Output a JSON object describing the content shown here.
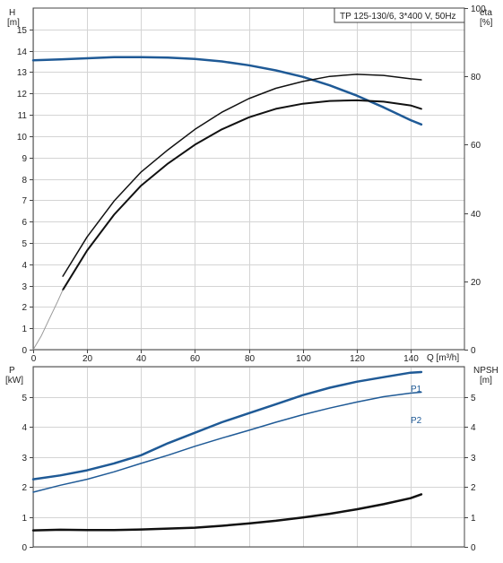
{
  "chart_data": [
    {
      "type": "line",
      "panel": "top",
      "title_box": "TP 125-130/6, 3*400 V, 50Hz",
      "left_axis": {
        "label": "H",
        "unit": "[m]",
        "ticks": [
          "0",
          "1",
          "2",
          "3",
          "4",
          "5",
          "6",
          "7",
          "8",
          "9",
          "10",
          "11",
          "12",
          "13",
          "14",
          "15"
        ],
        "range": [
          0,
          16
        ]
      },
      "right_axis": {
        "label": "eta",
        "unit": "[%]",
        "ticks": [
          "0",
          "20",
          "40",
          "60",
          "80",
          "100"
        ],
        "range": [
          0,
          100
        ]
      },
      "x_axis": {
        "label": "Q [m³/h]",
        "ticks": [
          "0",
          "20",
          "40",
          "60",
          "80",
          "100",
          "120",
          "140"
        ],
        "range": [
          0,
          160
        ]
      },
      "grid": true,
      "series": [
        {
          "axis": "left",
          "color": "#1f5a96",
          "width": 2.5,
          "points": [
            [
              0,
              13.55
            ],
            [
              10,
              13.6
            ],
            [
              20,
              13.65
            ],
            [
              30,
              13.7
            ],
            [
              40,
              13.7
            ],
            [
              50,
              13.68
            ],
            [
              60,
              13.62
            ],
            [
              70,
              13.5
            ],
            [
              80,
              13.32
            ],
            [
              90,
              13.08
            ],
            [
              100,
              12.78
            ],
            [
              110,
              12.38
            ],
            [
              120,
              11.9
            ],
            [
              130,
              11.35
            ],
            [
              140,
              10.75
            ],
            [
              144,
              10.55
            ]
          ]
        },
        {
          "axis": "right",
          "color": "#111111",
          "width": 2,
          "points": [
            [
              11,
              17.5
            ],
            [
              20,
              29
            ],
            [
              30,
              39.5
            ],
            [
              40,
              48
            ],
            [
              50,
              54.5
            ],
            [
              60,
              60
            ],
            [
              70,
              64.5
            ],
            [
              80,
              68
            ],
            [
              90,
              70.5
            ],
            [
              100,
              72
            ],
            [
              110,
              72.8
            ],
            [
              120,
              73
            ],
            [
              130,
              72.6
            ],
            [
              140,
              71.5
            ],
            [
              144,
              70.5
            ]
          ]
        },
        {
          "axis": "right",
          "color": "#111111",
          "width": 1.5,
          "points": [
            [
              11,
              21.5
            ],
            [
              20,
              33
            ],
            [
              30,
              43.5
            ],
            [
              40,
              52
            ],
            [
              50,
              58.5
            ],
            [
              60,
              64.5
            ],
            [
              70,
              69.5
            ],
            [
              80,
              73.5
            ],
            [
              90,
              76.5
            ],
            [
              100,
              78.5
            ],
            [
              110,
              80
            ],
            [
              120,
              80.6
            ],
            [
              130,
              80.3
            ],
            [
              140,
              79.3
            ],
            [
              144,
              79
            ]
          ]
        },
        {
          "axis": "right",
          "color": "#999999",
          "width": 1,
          "points": [
            [
              0,
              0
            ],
            [
              3,
              4
            ],
            [
              6,
              9
            ],
            [
              9,
              14
            ],
            [
              11,
              17.5
            ]
          ]
        }
      ]
    },
    {
      "type": "line",
      "panel": "bottom",
      "left_axis": {
        "label": "P",
        "unit": "[kW]",
        "ticks": [
          "0",
          "1",
          "2",
          "3",
          "4",
          "5"
        ],
        "range": [
          0,
          6
        ]
      },
      "right_axis": {
        "label": "NPSH",
        "unit": "[m]",
        "ticks": [
          "0",
          "1",
          "2",
          "3",
          "4",
          "5"
        ],
        "range": [
          0,
          6
        ]
      },
      "x_range": [
        0,
        160
      ],
      "grid": true,
      "series": [
        {
          "name": "P1",
          "axis": "left",
          "color": "#1f5a96",
          "width": 2.5,
          "points": [
            [
              0,
              2.25
            ],
            [
              10,
              2.38
            ],
            [
              20,
              2.55
            ],
            [
              30,
              2.78
            ],
            [
              40,
              3.05
            ],
            [
              50,
              3.45
            ],
            [
              60,
              3.8
            ],
            [
              70,
              4.15
            ],
            [
              80,
              4.45
            ],
            [
              90,
              4.75
            ],
            [
              100,
              5.05
            ],
            [
              110,
              5.3
            ],
            [
              120,
              5.5
            ],
            [
              130,
              5.65
            ],
            [
              140,
              5.8
            ],
            [
              144,
              5.82
            ]
          ]
        },
        {
          "name": "P2",
          "axis": "left",
          "color": "#1f5a96",
          "width": 1.5,
          "points": [
            [
              0,
              1.82
            ],
            [
              10,
              2.05
            ],
            [
              20,
              2.25
            ],
            [
              30,
              2.5
            ],
            [
              40,
              2.78
            ],
            [
              50,
              3.05
            ],
            [
              60,
              3.35
            ],
            [
              70,
              3.62
            ],
            [
              80,
              3.88
            ],
            [
              90,
              4.15
            ],
            [
              100,
              4.4
            ],
            [
              110,
              4.62
            ],
            [
              120,
              4.82
            ],
            [
              130,
              5
            ],
            [
              140,
              5.12
            ],
            [
              144,
              5.15
            ]
          ]
        },
        {
          "axis": "right",
          "color": "#111111",
          "width": 2.5,
          "points": [
            [
              0,
              0.55
            ],
            [
              10,
              0.57
            ],
            [
              20,
              0.56
            ],
            [
              30,
              0.56
            ],
            [
              40,
              0.58
            ],
            [
              50,
              0.61
            ],
            [
              60,
              0.64
            ],
            [
              70,
              0.7
            ],
            [
              80,
              0.78
            ],
            [
              90,
              0.87
            ],
            [
              100,
              0.98
            ],
            [
              110,
              1.1
            ],
            [
              120,
              1.25
            ],
            [
              130,
              1.42
            ],
            [
              140,
              1.62
            ],
            [
              144,
              1.75
            ]
          ]
        }
      ]
    }
  ]
}
